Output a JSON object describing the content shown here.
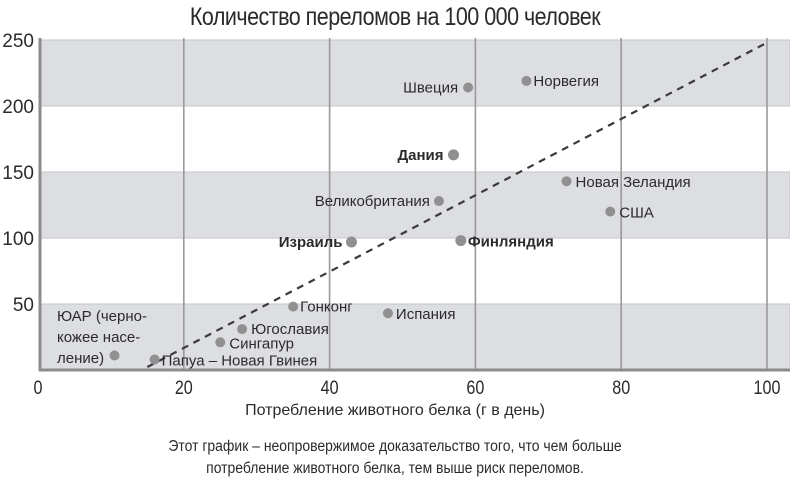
{
  "title": "Количество переломов на 100 000 человек",
  "xlabel": "Потребление животного белка (г в день)",
  "caption": {
    "line1": "Этот график – неопровержимое доказательство того, что чем больше",
    "line2": "потребление животного белка, тем выше риск переломов."
  },
  "colors": {
    "band": "#dcdee1",
    "grid": "#9a9a9a",
    "axis": "#8c8c8c",
    "point": "#909090",
    "trend": "#3a3a3a",
    "text": "#2b2b2b"
  },
  "chart_data": {
    "type": "scatter",
    "title": "Количество переломов на 100 000 человек",
    "xlabel": "Потребление животного белка (г в день)",
    "ylabel": "Количество переломов на 100 000 человек",
    "xlim": [
      0,
      100
    ],
    "ylim": [
      0,
      250
    ],
    "x_ticks": [
      0,
      20,
      40,
      60,
      80,
      100
    ],
    "y_ticks": [
      50,
      100,
      150,
      200,
      250
    ],
    "grid": true,
    "background_bands": [
      [
        0,
        50
      ],
      [
        100,
        150
      ],
      [
        200,
        250
      ]
    ],
    "points": [
      {
        "label": "ЮАР (черно-кожее насе-ление)",
        "label_lines": [
          "ЮАР (черно-",
          "кожее насе-",
          "ление)"
        ],
        "x": 10.5,
        "y": 11,
        "bold": false
      },
      {
        "label": "Папуа – Новая Гвинея",
        "x": 16,
        "y": 8,
        "bold": false
      },
      {
        "label": "Сингапур",
        "x": 25,
        "y": 21,
        "bold": false
      },
      {
        "label": "Югославия",
        "x": 28,
        "y": 31,
        "bold": false
      },
      {
        "label": "Гонконг",
        "x": 35,
        "y": 48,
        "bold": false
      },
      {
        "label": "Испания",
        "x": 48,
        "y": 43,
        "bold": false
      },
      {
        "label": "Израиль",
        "x": 43,
        "y": 97,
        "bold": true
      },
      {
        "label": "Финляндия",
        "x": 58,
        "y": 98,
        "bold": true
      },
      {
        "label": "Великобритания",
        "x": 55,
        "y": 128,
        "bold": false
      },
      {
        "label": "Дания",
        "x": 57,
        "y": 163,
        "bold": true
      },
      {
        "label": "Швеция",
        "x": 59,
        "y": 214,
        "bold": false
      },
      {
        "label": "Норвегия",
        "x": 67,
        "y": 219,
        "bold": false
      },
      {
        "label": "Новая Зеландия",
        "x": 72.5,
        "y": 143,
        "bold": false
      },
      {
        "label": "США",
        "x": 78.5,
        "y": 120,
        "bold": false
      }
    ],
    "trend_line": {
      "style": "dashed",
      "from": [
        15,
        0
      ],
      "to": [
        100,
        248
      ]
    },
    "annotation": "Этот график – неопровержимое доказательство того, что чем больше потребление животного белка, тем выше риск переломов."
  }
}
